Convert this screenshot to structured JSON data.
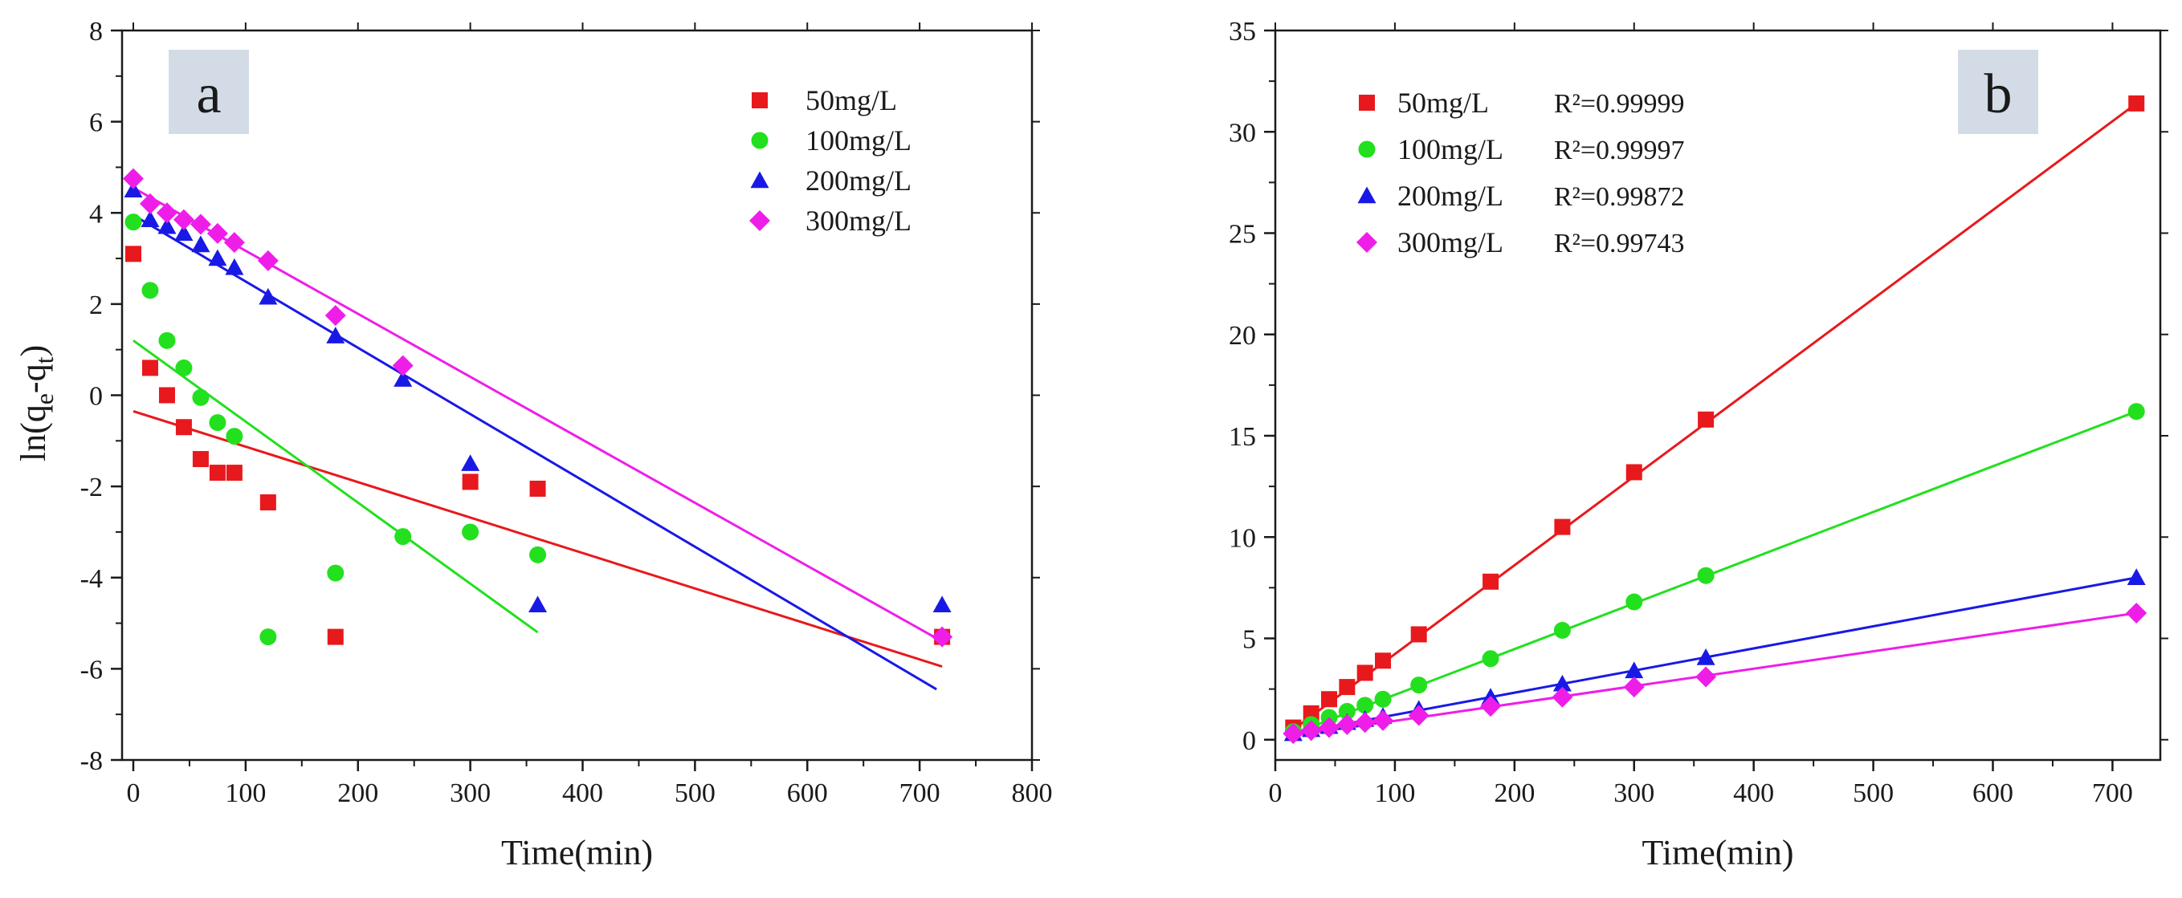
{
  "chart_data": [
    {
      "panel_label": "a",
      "type": "scatter",
      "xlabel": "Time(min)",
      "ylabel": "ln(q",
      "ylabel_sub1": "e",
      "ylabel_mid": "-q",
      "ylabel_sub2": "t",
      "ylabel_end": ")",
      "xlim": [
        -10,
        800
      ],
      "ylim": [
        -8,
        8
      ],
      "xticks": [
        0,
        100,
        200,
        300,
        400,
        500,
        600,
        700,
        800
      ],
      "yticks": [
        -8,
        -6,
        -4,
        -2,
        0,
        2,
        4,
        6,
        8
      ],
      "legend_position": "top-right",
      "series": [
        {
          "name": "50mg/L",
          "color": "#e8191c",
          "marker": "square",
          "points": [
            [
              0,
              3.1
            ],
            [
              15,
              0.6
            ],
            [
              30,
              0.0
            ],
            [
              45,
              -0.7
            ],
            [
              60,
              -1.4
            ],
            [
              75,
              -1.7
            ],
            [
              90,
              -1.7
            ],
            [
              120,
              -2.35
            ],
            [
              180,
              -5.3
            ],
            [
              300,
              -1.9
            ],
            [
              360,
              -2.05
            ],
            [
              720,
              -5.3
            ]
          ],
          "fit": [
            [
              0,
              -0.35
            ],
            [
              720,
              -5.95
            ]
          ]
        },
        {
          "name": "100mg/L",
          "color": "#22e01e",
          "marker": "circle",
          "points": [
            [
              0,
              3.8
            ],
            [
              15,
              2.3
            ],
            [
              30,
              1.2
            ],
            [
              45,
              0.6
            ],
            [
              60,
              -0.05
            ],
            [
              75,
              -0.6
            ],
            [
              90,
              -0.9
            ],
            [
              120,
              -5.3
            ],
            [
              180,
              -3.9
            ],
            [
              240,
              -3.1
            ],
            [
              300,
              -3.0
            ],
            [
              360,
              -3.5
            ]
          ],
          "fit": [
            [
              0,
              1.2
            ],
            [
              360,
              -5.2
            ]
          ]
        },
        {
          "name": "200mg/L",
          "color": "#1919e6",
          "marker": "triangle",
          "points": [
            [
              0,
              4.5
            ],
            [
              15,
              3.85
            ],
            [
              30,
              3.7
            ],
            [
              45,
              3.55
            ],
            [
              60,
              3.3
            ],
            [
              75,
              3.0
            ],
            [
              90,
              2.8
            ],
            [
              120,
              2.15
            ],
            [
              180,
              1.3
            ],
            [
              240,
              0.35
            ],
            [
              300,
              -1.5
            ],
            [
              360,
              -4.6
            ],
            [
              720,
              -4.6
            ]
          ],
          "fit": [
            [
              0,
              3.95
            ],
            [
              715,
              -6.45
            ]
          ]
        },
        {
          "name": "300mg/L",
          "color": "#ee1ee8",
          "marker": "diamond",
          "points": [
            [
              0,
              4.75
            ],
            [
              15,
              4.2
            ],
            [
              30,
              4.0
            ],
            [
              45,
              3.85
            ],
            [
              60,
              3.75
            ],
            [
              75,
              3.55
            ],
            [
              90,
              3.35
            ],
            [
              120,
              2.95
            ],
            [
              180,
              1.75
            ],
            [
              240,
              0.65
            ],
            [
              720,
              -5.3
            ]
          ],
          "fit": [
            [
              0,
              4.55
            ],
            [
              720,
              -5.4
            ]
          ]
        }
      ]
    },
    {
      "panel_label": "b",
      "type": "scatter",
      "xlabel": "Time(min)",
      "ylabel": "",
      "xlim": [
        0,
        740
      ],
      "ylim": [
        -1,
        35
      ],
      "xticks": [
        0,
        100,
        200,
        300,
        400,
        500,
        600,
        700
      ],
      "yticks": [
        0,
        5,
        10,
        15,
        20,
        25,
        30,
        35
      ],
      "legend_position": "top-left",
      "series": [
        {
          "name": "50mg/L",
          "r2": "R²=0.99999",
          "color": "#e8191c",
          "marker": "square",
          "points": [
            [
              15,
              0.6
            ],
            [
              30,
              1.3
            ],
            [
              45,
              2.0
            ],
            [
              60,
              2.6
            ],
            [
              75,
              3.3
            ],
            [
              90,
              3.9
            ],
            [
              120,
              5.2
            ],
            [
              180,
              7.8
            ],
            [
              240,
              10.5
            ],
            [
              300,
              13.2
            ],
            [
              360,
              15.8
            ],
            [
              720,
              31.4
            ]
          ],
          "fit": [
            [
              15,
              0.5
            ],
            [
              720,
              31.4
            ]
          ]
        },
        {
          "name": "100mg/L",
          "r2": "R²=0.99997",
          "color": "#22e01e",
          "marker": "circle",
          "points": [
            [
              15,
              0.4
            ],
            [
              30,
              0.75
            ],
            [
              45,
              1.1
            ],
            [
              60,
              1.4
            ],
            [
              75,
              1.7
            ],
            [
              90,
              2.0
            ],
            [
              120,
              2.7
            ],
            [
              180,
              4.0
            ],
            [
              240,
              5.4
            ],
            [
              300,
              6.8
            ],
            [
              360,
              8.1
            ],
            [
              720,
              16.2
            ]
          ],
          "fit": [
            [
              15,
              0.3
            ],
            [
              720,
              16.2
            ]
          ]
        },
        {
          "name": "200mg/L",
          "r2": "R²=0.99872",
          "color": "#1919e6",
          "marker": "triangle",
          "points": [
            [
              15,
              0.3
            ],
            [
              30,
              0.5
            ],
            [
              45,
              0.65
            ],
            [
              60,
              0.85
            ],
            [
              75,
              1.0
            ],
            [
              90,
              1.15
            ],
            [
              120,
              1.5
            ],
            [
              180,
              2.1
            ],
            [
              240,
              2.75
            ],
            [
              300,
              3.4
            ],
            [
              360,
              4.05
            ],
            [
              720,
              8.0
            ]
          ],
          "fit": [
            [
              15,
              0.3
            ],
            [
              720,
              8.0
            ]
          ]
        },
        {
          "name": "300mg/L",
          "r2": "R²=0.99743",
          "color": "#ee1ee8",
          "marker": "diamond",
          "points": [
            [
              15,
              0.3
            ],
            [
              30,
              0.45
            ],
            [
              45,
              0.6
            ],
            [
              60,
              0.75
            ],
            [
              75,
              0.85
            ],
            [
              90,
              0.95
            ],
            [
              120,
              1.2
            ],
            [
              180,
              1.65
            ],
            [
              240,
              2.1
            ],
            [
              300,
              2.6
            ],
            [
              360,
              3.1
            ],
            [
              720,
              6.25
            ]
          ],
          "fit": [
            [
              15,
              0.2
            ],
            [
              720,
              6.25
            ]
          ]
        }
      ]
    }
  ]
}
